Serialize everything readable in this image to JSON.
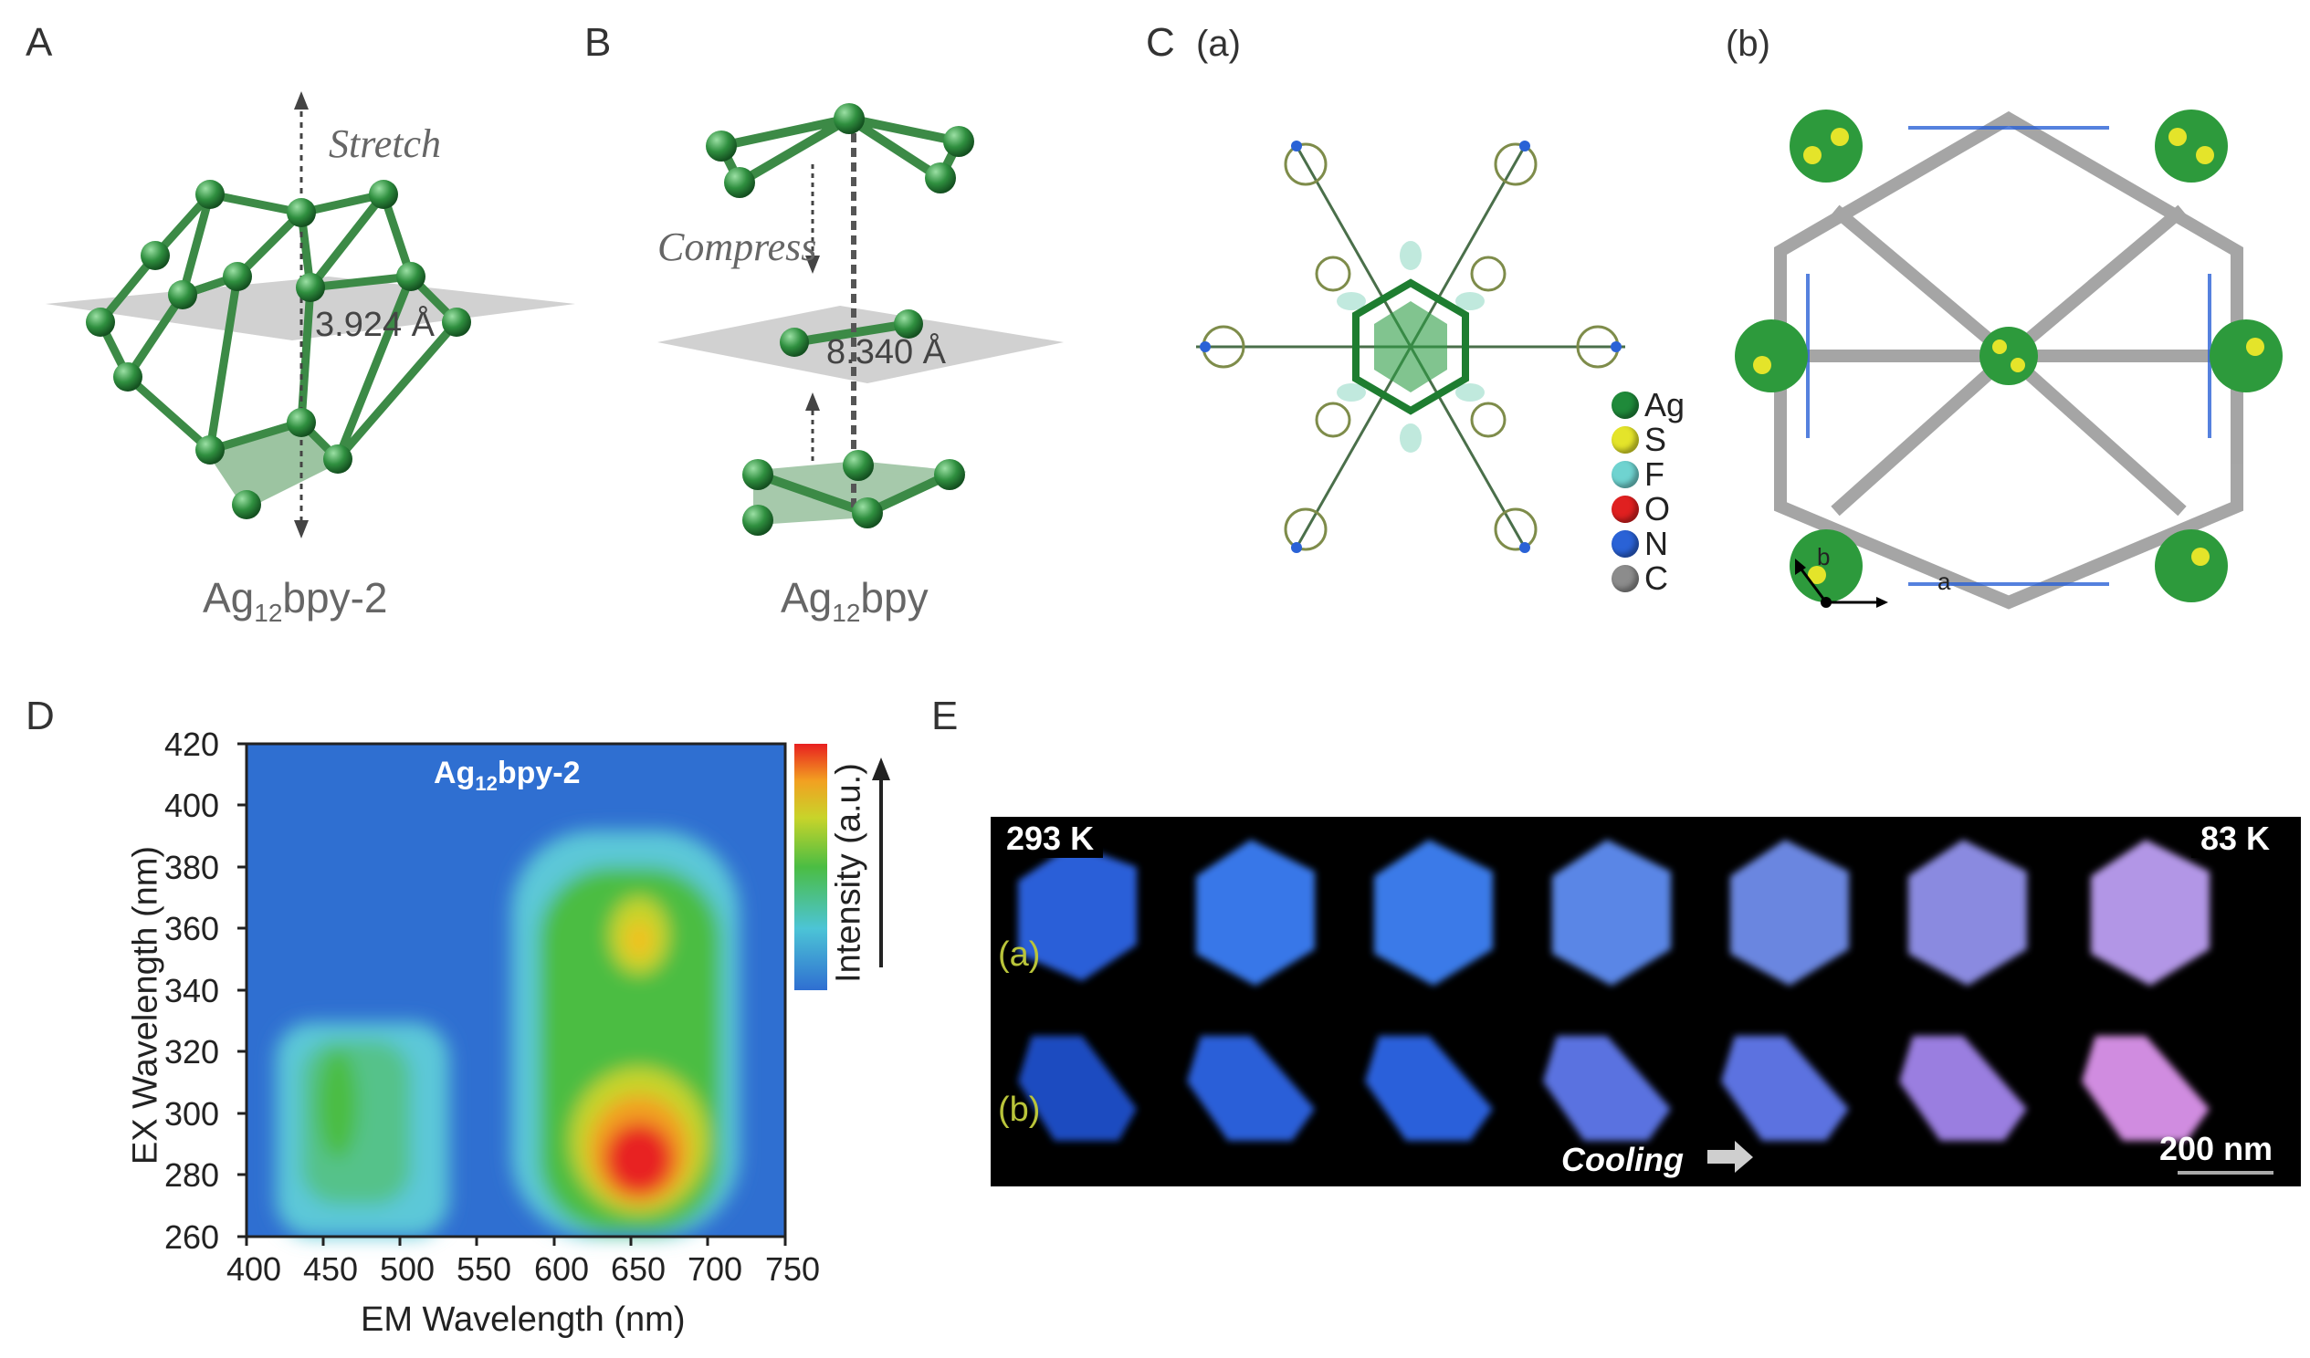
{
  "panels": {
    "A": {
      "letter": "A",
      "annotation": "Stretch",
      "distance": "3.924 Å",
      "caption_main": "Ag",
      "caption_sub": "12",
      "caption_tail": "bpy-2"
    },
    "B": {
      "letter": "B",
      "annotation": "Compress",
      "distance": "8.340 Å",
      "caption_main": "Ag",
      "caption_sub": "12",
      "caption_tail": "bpy"
    },
    "C": {
      "letter": "C",
      "sub_a": "(a)",
      "sub_b": "(b)",
      "legend": [
        {
          "label": "Ag",
          "color": "#1f8a3a"
        },
        {
          "label": "S",
          "color": "#e4e42a"
        },
        {
          "label": "F",
          "color": "#6fd3d0"
        },
        {
          "label": "O",
          "color": "#e02020"
        },
        {
          "label": "N",
          "color": "#2a62d6"
        },
        {
          "label": "C",
          "color": "#8c8c8c"
        }
      ],
      "axis_b": "b",
      "axis_a": "a"
    },
    "D": {
      "letter": "D",
      "map_title_main": "Ag",
      "map_title_sub": "12",
      "map_title_tail": "bpy-2",
      "colorbar_label": "Intensity (a.u.)"
    },
    "E": {
      "letter": "E",
      "temp_start": "293 K",
      "temp_end": "83 K",
      "row_a": "(a)",
      "row_b": "(b)",
      "cooling": "Cooling",
      "scale": "200 nm"
    }
  },
  "chart_data": {
    "type": "heatmap",
    "title": "Ag12bpy-2",
    "xlabel": "EM Wavelength (nm)",
    "ylabel": "EX Wavelength (nm)",
    "xlim": [
      400,
      750
    ],
    "ylim": [
      260,
      420
    ],
    "xticks": [
      "400",
      "450",
      "500",
      "550",
      "600",
      "650",
      "700",
      "750"
    ],
    "yticks": [
      "260",
      "280",
      "300",
      "320",
      "340",
      "360",
      "380",
      "400",
      "420"
    ],
    "colorbar": "Intensity (a.u.)",
    "peaks": [
      {
        "em": 630,
        "ex": 282,
        "level": "max"
      },
      {
        "em": 630,
        "ex": 357,
        "level": "high"
      },
      {
        "em": 460,
        "ex": 320,
        "level": "medium"
      }
    ]
  },
  "colors": {
    "green_atom": "#2f8f3f",
    "map_bg": "#2f6fd1",
    "micro_bg": "#000000"
  }
}
